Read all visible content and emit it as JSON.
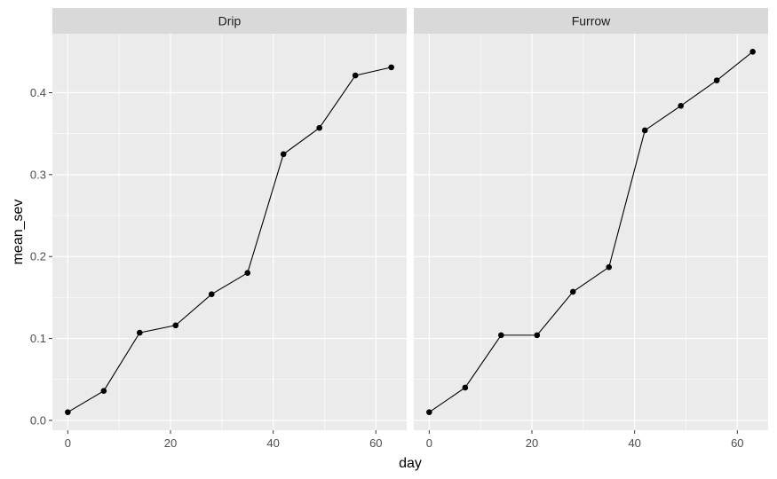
{
  "chart_data": {
    "type": "line",
    "xlabel": "day",
    "ylabel": "mean_sev",
    "xlim": [
      -3,
      66
    ],
    "ylim": [
      -0.012,
      0.472
    ],
    "x_ticks": [
      0,
      20,
      40,
      60
    ],
    "y_ticks": [
      0.0,
      0.1,
      0.2,
      0.3,
      0.4
    ],
    "y_tick_labels": [
      "0.0",
      "0.1",
      "0.2",
      "0.3",
      "0.4"
    ],
    "grid": true,
    "colors": {
      "panel": "#ebebeb",
      "strip": "#d9d9d9",
      "grid": "#ffffff",
      "line": "#000000",
      "point": "#000000"
    },
    "facets": [
      {
        "label": "Drip",
        "x": [
          0,
          7,
          14,
          21,
          28,
          35,
          42,
          49,
          56,
          63
        ],
        "y": [
          0.01,
          0.036,
          0.107,
          0.116,
          0.154,
          0.18,
          0.325,
          0.357,
          0.421,
          0.431
        ]
      },
      {
        "label": "Furrow",
        "x": [
          0,
          7,
          14,
          21,
          28,
          35,
          42,
          49,
          56,
          63
        ],
        "y": [
          0.01,
          0.04,
          0.104,
          0.104,
          0.157,
          0.187,
          0.354,
          0.384,
          0.415,
          0.45
        ]
      }
    ]
  }
}
